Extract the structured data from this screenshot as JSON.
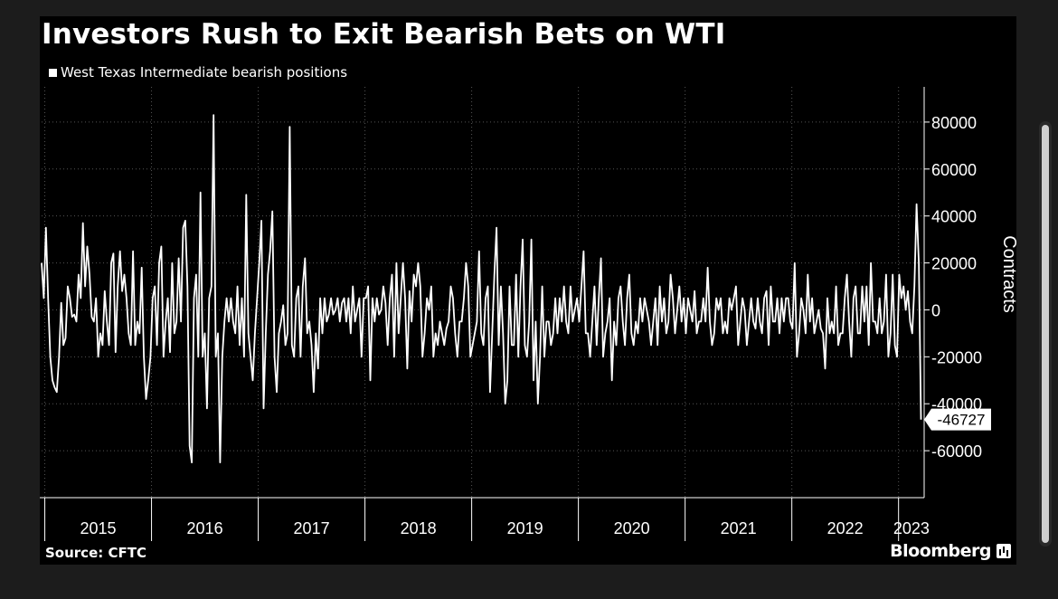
{
  "title": "Investors Rush to Exit Bearish Bets on WTI",
  "legend_label": "West Texas Intermediate bearish positions",
  "source": "Source: CFTC",
  "brand": "Bloomberg",
  "brand_icon": "bloomberg-chart-icon",
  "colors": {
    "background": "#000000",
    "line": "#ffffff",
    "grid": "#555555"
  },
  "chart_data": {
    "type": "line",
    "ylabel": "Contracts",
    "xlabel": "",
    "ylim": [
      -80000,
      95000
    ],
    "yticks": [
      80000,
      60000,
      40000,
      20000,
      0,
      -20000,
      -40000,
      -60000
    ],
    "ytick_labels": [
      "80000",
      "60000",
      "40000",
      "20000",
      "0",
      "-20000",
      "-40000",
      "-60000"
    ],
    "grid": true,
    "year_labels": [
      "2015",
      "2016",
      "2017",
      "2018",
      "2019",
      "2020",
      "2021",
      "2022",
      "2023"
    ],
    "year_starts": [
      2015,
      2016,
      2017,
      2018,
      2019,
      2020,
      2021,
      2022,
      2023
    ],
    "x_range": [
      2014.97,
      2023.24
    ],
    "last_value_label": "-46727",
    "series": [
      {
        "name": "West Texas Intermediate bearish positions",
        "x_start": 2014.97,
        "x_end": 2023.21,
        "values": [
          20000,
          5000,
          35000,
          5000,
          -20000,
          -30000,
          -33000,
          -35000,
          -20000,
          3000,
          -15000,
          -12000,
          10000,
          5000,
          -3000,
          -2000,
          -5000,
          15000,
          5000,
          37000,
          10000,
          27000,
          15000,
          -3000,
          -5000,
          5000,
          -20000,
          -10000,
          -15000,
          8000,
          -5000,
          -15000,
          20000,
          24000,
          -18000,
          10000,
          25000,
          8000,
          15000,
          5000,
          -10000,
          -15000,
          25000,
          -15000,
          -5000,
          -10000,
          18000,
          -20000,
          -38000,
          -30000,
          -20000,
          5000,
          10000,
          -15000,
          20000,
          27000,
          -20000,
          -5000,
          5000,
          -18000,
          20000,
          -10000,
          -5000,
          22000,
          -5000,
          35000,
          38000,
          10000,
          -58000,
          -65000,
          5000,
          15000,
          -20000,
          50000,
          -20000,
          -10000,
          -42000,
          5000,
          10000,
          83000,
          -20000,
          -10000,
          -65000,
          -20000,
          -5000,
          5000,
          -5000,
          5000,
          -5000,
          -10000,
          10000,
          -15000,
          5000,
          -20000,
          49000,
          -10000,
          -20000,
          -30000,
          -10000,
          5000,
          20000,
          38000,
          -42000,
          -10000,
          15000,
          25000,
          42000,
          -20000,
          -35000,
          -10000,
          -5000,
          2000,
          -15000,
          -10000,
          78000,
          -15000,
          -20000,
          5000,
          10000,
          -20000,
          10000,
          22000,
          -10000,
          -5000,
          -15000,
          -35000,
          -10000,
          -25000,
          5000,
          -10000,
          5000,
          -5000,
          -2000,
          5000,
          -2000,
          0,
          5000,
          -5000,
          3000,
          5000,
          -5000,
          5000,
          -10000,
          10000,
          -5000,
          0,
          5000,
          -20000,
          5000,
          5000,
          10000,
          -30000,
          5000,
          -5000,
          5000,
          -2000,
          0,
          10000,
          3000,
          -15000,
          5000,
          15000,
          -20000,
          20000,
          -10000,
          5000,
          20000,
          5000,
          -25000,
          8000,
          -5000,
          15000,
          10000,
          20000,
          10000,
          -20000,
          -10000,
          5000,
          0,
          10000,
          -20000,
          -10000,
          -15000,
          -5000,
          -10000,
          -15000,
          -8000,
          -5000,
          10000,
          5000,
          -10000,
          -20000,
          -5000,
          -5000,
          5000,
          20000,
          10000,
          -20000,
          -15000,
          -10000,
          -5000,
          25000,
          -10000,
          -15000,
          5000,
          10000,
          -35000,
          -10000,
          15000,
          35000,
          -15000,
          10000,
          -10000,
          -40000,
          -30000,
          10000,
          -15000,
          -15000,
          15000,
          -20000,
          10000,
          30000,
          -15000,
          -20000,
          -5000,
          30000,
          -30000,
          -5000,
          -40000,
          -20000,
          10000,
          -20000,
          -5000,
          -5000,
          -15000,
          -10000,
          5000,
          -10000,
          5000,
          -5000,
          10000,
          -5000,
          -10000,
          10000,
          -5000,
          0,
          5000,
          -5000,
          10000,
          25000,
          -10000,
          -10000,
          -20000,
          -5000,
          10000,
          -15000,
          5000,
          22000,
          -20000,
          -10000,
          -5000,
          5000,
          -30000,
          -5000,
          -15000,
          5000,
          10000,
          -5000,
          -15000,
          5000,
          15000,
          -10000,
          -15000,
          -5000,
          -10000,
          5000,
          -5000,
          5000,
          0,
          -5000,
          -15000,
          -5000,
          5000,
          -15000,
          10000,
          -5000,
          5000,
          -10000,
          -5000,
          15000,
          5000,
          -10000,
          0,
          10000,
          -5000,
          5000,
          -10000,
          5000,
          0,
          -5000,
          8000,
          -10000,
          -5000,
          -5000,
          5000,
          -5000,
          18000,
          -5000,
          -15000,
          -10000,
          5000,
          0,
          5000,
          -10000,
          -5000,
          -10000,
          5000,
          0,
          5000,
          10000,
          -15000,
          -5000,
          5000,
          0,
          -15000,
          -5000,
          5000,
          -5000,
          -8000,
          5000,
          -5000,
          -10000,
          5000,
          8000,
          -15000,
          10000,
          -5000,
          -5000,
          5000,
          -10000,
          5000,
          -5000,
          5000,
          5000,
          -5000,
          -8000,
          20000,
          -20000,
          -10000,
          5000,
          0,
          -10000,
          15000,
          -5000,
          5000,
          -10000,
          -5000,
          0,
          -8000,
          -10000,
          -25000,
          5000,
          -10000,
          -5000,
          -10000,
          10000,
          -15000,
          -10000,
          -10000,
          5000,
          15000,
          -5000,
          -20000,
          5000,
          10000,
          -10000,
          -10000,
          10000,
          -5000,
          10000,
          -15000,
          20000,
          -5000,
          -5000,
          -10000,
          5000,
          -10000,
          -5000,
          15000,
          -20000,
          -10000,
          15000,
          -15000,
          -20000,
          15000,
          5000,
          10000,
          0,
          8000,
          -5000,
          -10000,
          10000,
          45000,
          20000,
          -46727
        ]
      }
    ]
  }
}
